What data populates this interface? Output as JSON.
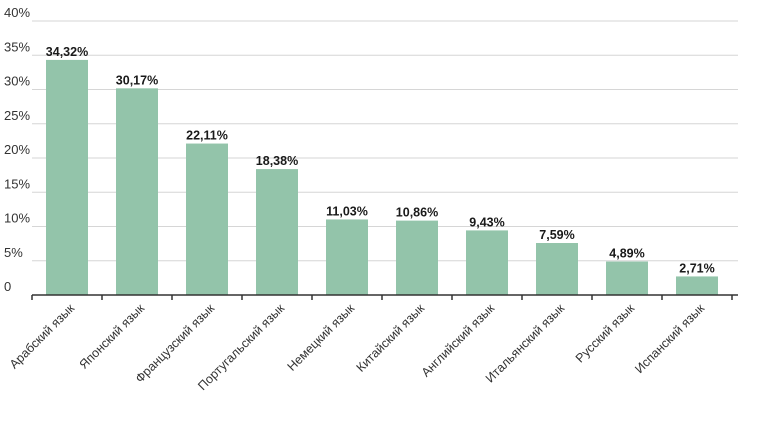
{
  "chart_data": {
    "type": "bar",
    "categories": [
      "Арабский язык",
      "Японский язык",
      "Французский язык",
      "Португальский язык",
      "Немецкий язык",
      "Китайский язык",
      "Английский язык",
      "Итальянский язык",
      "Русский язык",
      "Испанский язык"
    ],
    "values": [
      34.32,
      30.17,
      22.11,
      18.38,
      11.03,
      10.86,
      9.43,
      7.59,
      4.89,
      2.71
    ],
    "data_labels": [
      "34,32%",
      "30,17%",
      "22,11%",
      "18,38%",
      "11,03%",
      "10,86%",
      "9,43%",
      "7,59%",
      "4,89%",
      "2,71%"
    ],
    "yticks": [
      0,
      5,
      10,
      15,
      20,
      25,
      30,
      35,
      40
    ],
    "ytick_labels": [
      "0",
      "5%",
      "10%",
      "15%",
      "20%",
      "25%",
      "30%",
      "35%",
      "40%"
    ],
    "ylim": [
      0,
      40
    ],
    "grid": true,
    "bar_color": "#93c4aa",
    "title": "",
    "xlabel": "",
    "ylabel": ""
  }
}
